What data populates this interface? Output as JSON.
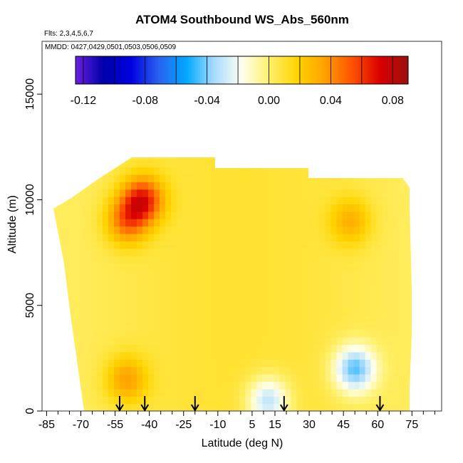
{
  "chart_data": {
    "type": "heatmap",
    "title": "ATOM4 Southbound WS_Abs_560nm",
    "annotations": [
      "Flts: 2,3,4,5,6,7",
      "MMDD: 0427,0429,0501,0503,0506,0509"
    ],
    "xlabel": "Latitude (deg N)",
    "ylabel": "Altitude (m)",
    "xlim": [
      -87,
      88
    ],
    "ylim": [
      0,
      17500
    ],
    "x_ticks": [
      -85,
      -70,
      -55,
      -40,
      -25,
      -10,
      5,
      15,
      30,
      45,
      60,
      75
    ],
    "y_ticks": [
      0,
      5000,
      10000,
      15000
    ],
    "grid": false,
    "colorbar": {
      "location": "top",
      "range": [
        -0.125,
        0.09
      ],
      "tick_values": [
        -0.12,
        -0.08,
        -0.04,
        0.0,
        0.04,
        0.08
      ],
      "tick_labels": [
        "-0.12",
        "-0.08",
        "-0.04",
        "0.00",
        "0.04",
        "0.08"
      ],
      "colors": [
        "#6a1fe0",
        "#0000a8",
        "#0000e0",
        "#2a62f0",
        "#00a8ff",
        "#a8dcff",
        "#fffff0",
        "#fff06a",
        "#ffd400",
        "#ffa000",
        "#ff5000",
        "#d80000",
        "#9a1010"
      ]
    },
    "data_extent": {
      "top_altitude": 12500,
      "lat_range": [
        -80,
        71
      ]
    },
    "features": [
      {
        "lat": -43,
        "alt": 10000,
        "value": 0.06,
        "desc": "red/orange maximum"
      },
      {
        "lat": -50,
        "alt": 9000,
        "value": 0.04
      },
      {
        "lat": -50,
        "alt": 1500,
        "value": 0.03
      },
      {
        "lat": 48,
        "alt": 9000,
        "value": 0.025
      },
      {
        "lat": 50,
        "alt": 2000,
        "value": -0.05,
        "desc": "blue minimum"
      },
      {
        "lat": 12,
        "alt": 500,
        "value": -0.04
      }
    ],
    "arrows_lat": [
      -53,
      -42,
      -20,
      19,
      61
    ]
  }
}
